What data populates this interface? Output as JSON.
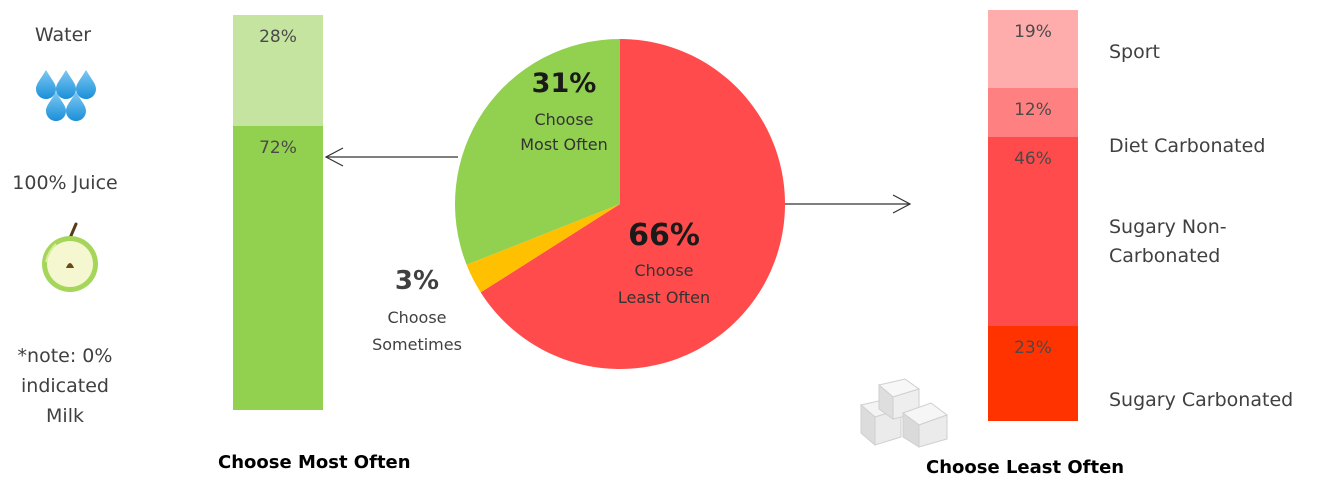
{
  "chart_data": {
    "type": "pie",
    "slices": [
      {
        "category": "Choose Most Often",
        "value": 31,
        "pct_label": "31%",
        "label": "Choose\nMost Often",
        "color": "#92d050"
      },
      {
        "category": "Choose Sometimes",
        "value": 3,
        "pct_label": "3%",
        "label": "Choose\nSometimes",
        "color": "#ffc000"
      },
      {
        "category": "Choose Least Often",
        "value": 66,
        "pct_label": "66%",
        "label": "Choose\nLeast Often",
        "color": "#ff4b4b"
      }
    ],
    "most_often_breakdown": {
      "caption": "Choose Most Often",
      "segments": [
        {
          "name": "Water",
          "value": 28,
          "label": "28%",
          "color": "#c5e4a0"
        },
        {
          "name": "100% Juice",
          "value": 72,
          "label": "72%",
          "color": "#92d050"
        }
      ]
    },
    "least_often_breakdown": {
      "caption": "Choose Least Often",
      "segments": [
        {
          "name": "Sport",
          "value": 19,
          "label": "19%",
          "color": "#ffacac"
        },
        {
          "name": "Diet Carbonated",
          "value": 12,
          "label": "12%",
          "color": "#ff8080"
        },
        {
          "name": "Sugary Non-\nCarbonated",
          "value": 46,
          "label": "46%",
          "color": "#ff4b4b"
        },
        {
          "name": "Sugary Carbonated",
          "value": 23,
          "label": "23%",
          "color": "#ff3300"
        }
      ]
    }
  },
  "left_legend": {
    "water": "Water",
    "juice": "100% Juice",
    "note_line1": "*note: 0%",
    "note_line2": "indicated",
    "note_line3": "Milk"
  },
  "icons": {
    "water": "water-drops-icon",
    "juice": "green-apple-icon",
    "sugar": "sugar-cubes-icon"
  }
}
